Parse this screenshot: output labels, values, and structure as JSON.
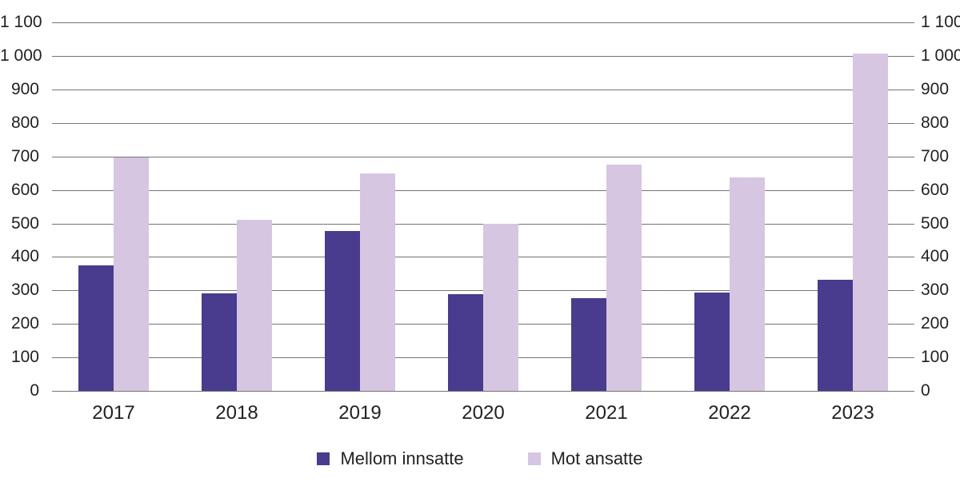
{
  "chart_data": {
    "type": "bar",
    "categories": [
      "2017",
      "2018",
      "2019",
      "2020",
      "2021",
      "2022",
      "2023"
    ],
    "series": [
      {
        "name": "Mellom innsatte",
        "color": "#493B8D",
        "values": [
          375,
          291,
          477,
          288,
          276,
          293,
          332
        ]
      },
      {
        "name": "Mot ansatte",
        "color": "#D6C6E2",
        "values": [
          697,
          511,
          650,
          500,
          676,
          638,
          1007
        ]
      }
    ],
    "title": "",
    "xlabel": "",
    "ylabel": "",
    "ylim": [
      0,
      1100
    ],
    "ytick_step": 100,
    "ytick_values": [
      0,
      100,
      200,
      300,
      400,
      500,
      600,
      700,
      800,
      900,
      1000,
      1100
    ],
    "ytick_labels": [
      "0",
      "100",
      "200",
      "300",
      "400",
      "500",
      "600",
      "700",
      "800",
      "900",
      "1 000",
      "1 100"
    ],
    "grid": true,
    "gridline_color": "#757575",
    "text_color": "#231F20",
    "background_color": "#FFFFFF",
    "legend_position": "bottom-center",
    "y_axis_sides": [
      "left",
      "right"
    ]
  }
}
